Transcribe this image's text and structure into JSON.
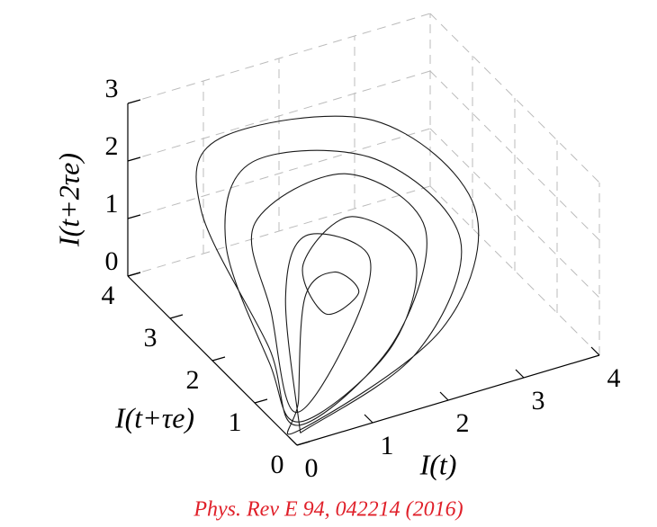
{
  "chart_data": {
    "type": "line3d",
    "xlabel": "I(t)",
    "ylabel": "I(t+τe)",
    "zlabel": "I(t+2τe)",
    "source": "Phys. Rev E 94, 042214 (2016)",
    "xlim": [
      0,
      4
    ],
    "ylim": [
      0,
      4
    ],
    "zlim": [
      0,
      3
    ],
    "xticks": [
      0,
      1,
      2,
      3,
      4
    ],
    "yticks": [
      0,
      1,
      2,
      3,
      4
    ],
    "zticks": [
      0,
      1,
      2,
      3
    ],
    "grid": true,
    "series": [
      {
        "color": "#1a1a1a",
        "x": [
          0.1,
          1.8,
          3.0,
          2.6,
          1.2,
          0.4,
          0.2,
          0.15,
          1.5,
          2.4,
          2.0,
          1.2,
          1.1,
          1.6,
          1.5,
          1.0,
          0.3,
          0.1,
          2.2,
          3.3,
          2.8,
          1.0,
          0.3,
          0.3,
          0.12,
          1.6,
          2.7,
          2.2,
          0.9,
          0.5,
          0.2,
          1.2,
          1.9,
          1.4,
          0.8,
          0.1
        ],
        "y": [
          0.1,
          0.4,
          1.5,
          2.8,
          3.2,
          2.4,
          1.0,
          0.2,
          0.5,
          1.5,
          2.3,
          2.0,
          1.3,
          1.4,
          1.8,
          1.6,
          0.5,
          0.15,
          0.5,
          1.7,
          3.2,
          3.6,
          2.8,
          1.2,
          0.2,
          0.6,
          1.8,
          2.8,
          2.6,
          1.5,
          0.4,
          0.9,
          1.7,
          2.3,
          1.7,
          0.1
        ],
        "z": [
          0.1,
          0.6,
          1.3,
          1.9,
          2.1,
          1.6,
          0.6,
          0.2,
          0.7,
          1.2,
          1.5,
          1.2,
          0.9,
          1.0,
          1.1,
          1.0,
          0.3,
          0.1,
          0.8,
          1.6,
          2.2,
          2.3,
          1.9,
          0.7,
          0.15,
          0.7,
          1.4,
          1.8,
          1.6,
          1.0,
          0.2,
          0.8,
          1.3,
          1.4,
          1.0,
          0.1
        ]
      }
    ]
  }
}
